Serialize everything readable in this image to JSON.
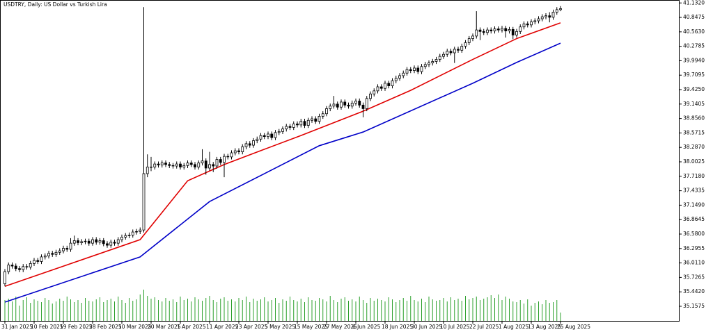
{
  "chart_data": {
    "type": "candlestick",
    "title": "USDTRY, Daily:  US Dollar vs Turkish Lira",
    "ylim": [
      34.87,
      41.19
    ],
    "yticks": [
      {
        "value": 41.132,
        "label": "41.1320"
      },
      40.8475,
      {
        "value": 40.563,
        "label": "40.5630"
      },
      40.2785,
      {
        "value": 39.994,
        "label": "39.9940"
      },
      39.7095,
      {
        "value": 39.425,
        "label": "39.4250"
      },
      39.1405,
      {
        "value": 38.856,
        "label": "38.8560"
      },
      38.5715,
      {
        "value": 38.287,
        "label": "38.2870"
      },
      38.0025,
      {
        "value": 37.718,
        "label": "37.7180"
      },
      37.4335,
      {
        "value": 37.149,
        "label": "37.1490"
      },
      36.8645,
      {
        "value": 36.58,
        "label": "36.5800"
      },
      36.2955,
      {
        "value": 36.011,
        "label": "36.0110"
      },
      35.7265,
      {
        "value": 35.442,
        "label": "35.4420"
      },
      35.1575
    ],
    "xticks": [
      {
        "value": 0,
        "label": "31 Jan 2025"
      },
      {
        "value": 8,
        "label": "10 Feb 2025"
      },
      {
        "value": 16,
        "label": "19 Feb 2025"
      },
      {
        "value": 24,
        "label": "28 Feb 2025"
      },
      {
        "value": 32,
        "label": "10 Mar 2025"
      },
      {
        "value": 40,
        "label": "20 Mar 2025"
      },
      {
        "value": 48,
        "label": "1 Apr 2025"
      },
      {
        "value": 56,
        "label": "11 Apr 2025"
      },
      {
        "value": 64,
        "label": "23 Apr 2025"
      },
      {
        "value": 72,
        "label": "5 May 2025"
      },
      {
        "value": 80,
        "label": "15 May 2025"
      },
      {
        "value": 88,
        "label": "27 May 2025"
      },
      {
        "value": 96,
        "label": "6 Jun 2025"
      },
      {
        "value": 104,
        "label": "18 Jun 2025"
      },
      {
        "value": 112,
        "label": "30 Jun 2025"
      },
      {
        "value": 120,
        "label": "10 Jul 2025"
      },
      {
        "value": 128,
        "label": "22 Jul 2025"
      },
      {
        "value": 136,
        "label": "1 Aug 2025"
      },
      {
        "value": 144,
        "label": "13 Aug 2025"
      },
      {
        "value": 152,
        "label": "25 Aug 2025"
      }
    ],
    "open": [
      35.6,
      35.84,
      35.97,
      35.95,
      35.9,
      35.88,
      35.94,
      35.93,
      36.0,
      36.06,
      36.04,
      36.13,
      36.15,
      36.2,
      36.18,
      36.22,
      36.25,
      36.3,
      36.28,
      36.4,
      36.45,
      36.41,
      36.43,
      36.44,
      36.4,
      36.47,
      36.42,
      36.45,
      36.39,
      36.36,
      36.42,
      36.4,
      36.47,
      36.52,
      36.55,
      36.56,
      36.62,
      36.63,
      36.66,
      37.77,
      37.9,
      37.9,
      37.96,
      37.94,
      37.98,
      37.95,
      37.93,
      37.92,
      37.96,
      37.9,
      37.93,
      37.98,
      37.95,
      37.9,
      37.98,
      38.02,
      37.88,
      37.95,
      37.92,
      38.05,
      37.99,
      38.11,
      38.1,
      38.18,
      38.22,
      38.2,
      38.3,
      38.36,
      38.33,
      38.42,
      38.45,
      38.52,
      38.5,
      38.55,
      38.48,
      38.58,
      38.6,
      38.65,
      38.7,
      38.68,
      38.75,
      38.73,
      38.8,
      38.72,
      38.82,
      38.85,
      38.8,
      38.9,
      38.95,
      39.05,
      39.1,
      39.14,
      39.08,
      39.18,
      39.12,
      39.1,
      39.16,
      39.2,
      39.12,
      39.05,
      39.25,
      39.34,
      39.4,
      39.48,
      39.45,
      39.55,
      39.5,
      39.6,
      39.65,
      39.7,
      39.75,
      39.82,
      39.8,
      39.85,
      39.78,
      39.88,
      39.92,
      39.95,
      39.98,
      40.02,
      40.08,
      40.12,
      40.18,
      40.15,
      40.22,
      40.2,
      40.28,
      40.35,
      40.43,
      40.48,
      40.6,
      40.57,
      40.55,
      40.6,
      40.58,
      40.62,
      40.6,
      40.63,
      40.58,
      40.61,
      40.5,
      40.57,
      40.66,
      40.72,
      40.7,
      40.76,
      40.78,
      40.82,
      40.86,
      40.88,
      40.85,
      40.95,
      41.0
    ],
    "high": [
      35.89,
      36.02,
      36.02,
      36.0,
      35.95,
      35.99,
      35.99,
      36.05,
      36.11,
      36.11,
      36.18,
      36.2,
      36.25,
      36.25,
      36.27,
      36.3,
      36.35,
      36.35,
      36.5,
      36.55,
      36.5,
      36.48,
      36.49,
      36.49,
      36.52,
      36.52,
      36.5,
      36.5,
      36.44,
      36.47,
      36.47,
      36.52,
      36.57,
      36.6,
      36.61,
      36.67,
      36.68,
      36.71,
      41.05,
      38.15,
      38.1,
      38.01,
      38.01,
      38.03,
      38.03,
      38.0,
      37.98,
      38.01,
      38.01,
      37.98,
      38.03,
      38.03,
      38.0,
      38.03,
      38.25,
      38.07,
      38.2,
      38.0,
      38.1,
      38.1,
      38.16,
      38.16,
      38.23,
      38.27,
      38.27,
      38.35,
      38.41,
      38.41,
      38.47,
      38.5,
      38.57,
      38.57,
      38.6,
      38.6,
      38.63,
      38.65,
      38.7,
      38.75,
      38.75,
      38.8,
      38.8,
      38.85,
      38.85,
      38.87,
      38.9,
      38.9,
      38.95,
      39.0,
      39.1,
      39.15,
      39.3,
      39.19,
      39.23,
      39.23,
      39.17,
      39.21,
      39.25,
      39.25,
      39.17,
      39.3,
      39.39,
      39.45,
      39.53,
      39.53,
      39.6,
      39.6,
      39.65,
      39.7,
      39.75,
      39.8,
      39.87,
      39.87,
      39.9,
      39.9,
      39.93,
      39.97,
      40.0,
      40.03,
      40.07,
      40.13,
      40.17,
      40.23,
      40.23,
      40.27,
      40.27,
      40.33,
      40.4,
      40.48,
      40.53,
      40.97,
      40.65,
      40.62,
      40.65,
      40.65,
      40.67,
      40.67,
      40.68,
      40.68,
      40.66,
      40.66,
      40.62,
      40.71,
      40.77,
      40.77,
      40.81,
      40.83,
      40.87,
      40.91,
      40.93,
      40.95,
      41.0,
      41.05,
      41.07
    ],
    "low": [
      35.55,
      35.79,
      35.9,
      35.85,
      35.83,
      35.83,
      35.88,
      35.88,
      35.95,
      35.99,
      35.99,
      36.08,
      36.1,
      36.13,
      36.13,
      36.17,
      36.2,
      36.23,
      36.23,
      36.35,
      36.36,
      36.36,
      36.38,
      36.35,
      36.35,
      36.37,
      36.37,
      36.34,
      36.31,
      36.31,
      36.35,
      36.35,
      36.42,
      36.47,
      36.5,
      36.51,
      36.57,
      36.58,
      36.61,
      37.7,
      37.82,
      37.85,
      37.89,
      37.89,
      37.9,
      37.88,
      37.87,
      37.87,
      37.85,
      37.85,
      37.88,
      37.9,
      37.85,
      37.85,
      37.93,
      37.75,
      37.83,
      37.8,
      37.87,
      37.94,
      37.7,
      38.05,
      38.05,
      38.13,
      38.15,
      38.15,
      38.25,
      38.28,
      38.28,
      38.37,
      38.4,
      38.45,
      38.45,
      38.43,
      38.43,
      38.53,
      38.55,
      38.6,
      38.63,
      38.63,
      38.68,
      38.68,
      38.67,
      38.67,
      38.77,
      38.75,
      38.75,
      38.85,
      38.9,
      39.0,
      39.05,
      39.03,
      39.03,
      39.07,
      39.05,
      39.05,
      39.11,
      39.07,
      38.88,
      39.0,
      39.2,
      39.29,
      39.35,
      39.4,
      39.4,
      39.45,
      39.45,
      39.55,
      39.6,
      39.65,
      39.7,
      39.75,
      39.75,
      39.73,
      39.73,
      39.83,
      39.87,
      39.9,
      39.93,
      39.97,
      40.03,
      40.07,
      40.1,
      39.95,
      40.15,
      40.15,
      40.23,
      40.3,
      40.38,
      40.43,
      40.4,
      40.5,
      40.5,
      40.53,
      40.53,
      40.55,
      40.55,
      40.45,
      40.53,
      40.42,
      40.45,
      40.52,
      40.61,
      40.65,
      40.65,
      40.71,
      40.73,
      40.77,
      40.81,
      40.75,
      40.8,
      40.9,
      40.97
    ],
    "close": [
      35.84,
      35.97,
      35.95,
      35.9,
      35.88,
      35.94,
      35.93,
      36.0,
      36.06,
      36.04,
      36.13,
      36.15,
      36.2,
      36.18,
      36.22,
      36.25,
      36.3,
      36.28,
      36.4,
      36.45,
      36.41,
      36.43,
      36.44,
      36.4,
      36.47,
      36.42,
      36.45,
      36.39,
      36.36,
      36.42,
      36.4,
      36.47,
      36.52,
      36.55,
      36.56,
      36.62,
      36.63,
      36.66,
      37.77,
      37.9,
      37.9,
      37.96,
      37.94,
      37.98,
      37.95,
      37.93,
      37.92,
      37.96,
      37.9,
      37.93,
      37.98,
      37.95,
      37.9,
      37.98,
      38.02,
      37.88,
      37.95,
      37.92,
      38.05,
      37.99,
      38.11,
      38.1,
      38.18,
      38.22,
      38.2,
      38.3,
      38.36,
      38.33,
      38.42,
      38.45,
      38.52,
      38.5,
      38.55,
      38.48,
      38.58,
      38.6,
      38.65,
      38.7,
      38.68,
      38.75,
      38.73,
      38.8,
      38.72,
      38.82,
      38.85,
      38.8,
      38.9,
      38.95,
      39.05,
      39.1,
      39.14,
      39.08,
      39.18,
      39.12,
      39.1,
      39.16,
      39.2,
      39.12,
      39.05,
      39.25,
      39.34,
      39.4,
      39.48,
      39.45,
      39.55,
      39.5,
      39.6,
      39.65,
      39.7,
      39.75,
      39.82,
      39.8,
      39.85,
      39.78,
      39.88,
      39.92,
      39.95,
      39.98,
      40.02,
      40.08,
      40.12,
      40.18,
      40.15,
      40.22,
      40.2,
      40.28,
      40.35,
      40.43,
      40.48,
      40.6,
      40.57,
      40.55,
      40.6,
      40.58,
      40.62,
      40.6,
      40.63,
      40.58,
      40.61,
      40.5,
      40.57,
      40.66,
      40.72,
      40.7,
      40.76,
      40.78,
      40.82,
      40.86,
      40.88,
      40.85,
      40.95,
      41.0,
      41.02
    ],
    "volume": [
      30,
      32,
      28,
      35,
      22,
      30,
      34,
      26,
      31,
      29,
      27,
      33,
      30,
      25,
      28,
      32,
      29,
      35,
      31,
      27,
      30,
      26,
      33,
      29,
      28,
      31,
      34,
      27,
      30,
      32,
      28,
      35,
      30,
      26,
      33,
      29,
      31,
      38,
      45,
      36,
      32,
      34,
      30,
      28,
      33,
      29,
      31,
      27,
      35,
      30,
      32,
      28,
      34,
      31,
      29,
      33,
      36,
      30,
      27,
      32,
      34,
      29,
      31,
      28,
      33,
      30,
      35,
      27,
      32,
      29,
      31,
      34,
      28,
      30,
      33,
      26,
      31,
      29,
      35,
      30,
      28,
      32,
      27,
      34,
      30,
      29,
      33,
      31,
      28,
      36,
      30,
      27,
      32,
      34,
      29,
      31,
      28,
      35,
      30,
      26,
      33,
      29,
      32,
      30,
      28,
      34,
      31,
      27,
      30,
      33,
      29,
      36,
      30,
      28,
      32,
      27,
      35,
      31,
      29,
      30,
      33,
      28,
      34,
      30,
      32,
      29,
      36,
      31,
      33,
      35,
      30,
      32,
      34,
      37,
      33,
      38,
      30,
      35,
      32,
      28,
      27,
      30,
      25,
      31,
      22,
      26,
      28,
      24,
      30,
      26,
      27,
      30,
      12
    ],
    "volume_color": "#2ca02c",
    "lines": [
      {
        "color": "#e00000",
        "x": [
          0,
          37,
          50,
          60,
          71,
          81,
          98,
          111,
          128,
          140,
          152
        ],
        "values": [
          35.55,
          36.47,
          37.63,
          37.95,
          38.25,
          38.52,
          39.0,
          39.41,
          40.02,
          40.43,
          40.74
        ]
      },
      {
        "color": "#0000c8",
        "x": [
          0,
          37,
          56,
          86,
          98,
          128,
          140,
          152
        ],
        "values": [
          35.24,
          36.13,
          37.22,
          38.32,
          38.59,
          39.55,
          39.96,
          40.34
        ]
      }
    ]
  }
}
